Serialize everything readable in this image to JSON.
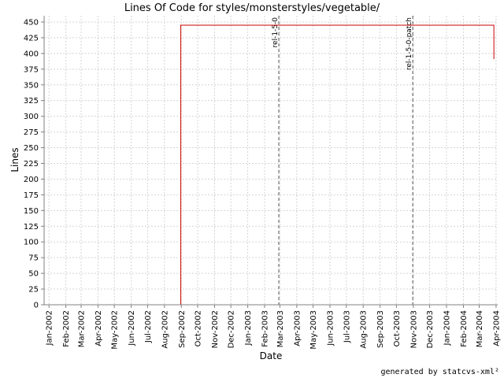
{
  "chart_data": {
    "type": "line",
    "title": "Lines Of Code for styles/monsterstyles/vegetable/",
    "xlabel": "Date",
    "ylabel": "Lines",
    "ylim": [
      0,
      460
    ],
    "xlim": [
      "2001-12-23",
      "2004-04-04"
    ],
    "y_ticks": [
      0,
      25,
      50,
      75,
      100,
      125,
      150,
      175,
      200,
      225,
      250,
      275,
      300,
      325,
      350,
      375,
      400,
      425,
      450
    ],
    "x_ticks": [
      {
        "label": "Jan-2002",
        "date": "2002-01-01"
      },
      {
        "label": "Feb-2002",
        "date": "2002-02-01"
      },
      {
        "label": "Mar-2002",
        "date": "2002-03-01"
      },
      {
        "label": "Apr-2002",
        "date": "2002-04-01"
      },
      {
        "label": "May-2002",
        "date": "2002-05-01"
      },
      {
        "label": "Jun-2002",
        "date": "2002-06-01"
      },
      {
        "label": "Jul-2002",
        "date": "2002-07-01"
      },
      {
        "label": "Aug-2002",
        "date": "2002-08-01"
      },
      {
        "label": "Sep-2002",
        "date": "2002-09-01"
      },
      {
        "label": "Oct-2002",
        "date": "2002-10-01"
      },
      {
        "label": "Nov-2002",
        "date": "2002-11-01"
      },
      {
        "label": "Dec-2002",
        "date": "2002-12-01"
      },
      {
        "label": "Jan-2003",
        "date": "2003-01-01"
      },
      {
        "label": "Feb-2003",
        "date": "2003-02-01"
      },
      {
        "label": "Mar-2003",
        "date": "2003-03-01"
      },
      {
        "label": "Apr-2003",
        "date": "2003-04-01"
      },
      {
        "label": "May-2003",
        "date": "2003-05-01"
      },
      {
        "label": "Jun-2003",
        "date": "2003-06-01"
      },
      {
        "label": "Jul-2003",
        "date": "2003-07-01"
      },
      {
        "label": "Aug-2003",
        "date": "2003-08-01"
      },
      {
        "label": "Sep-2003",
        "date": "2003-09-01"
      },
      {
        "label": "Oct-2003",
        "date": "2003-10-01"
      },
      {
        "label": "Nov-2003",
        "date": "2003-11-01"
      },
      {
        "label": "Dec-2003",
        "date": "2003-12-01"
      },
      {
        "label": "Jan-2004",
        "date": "2004-01-01"
      },
      {
        "label": "Feb-2004",
        "date": "2004-02-01"
      },
      {
        "label": "Mar-2004",
        "date": "2004-03-01"
      },
      {
        "label": "Apr-2004",
        "date": "2004-04-01"
      }
    ],
    "series": [
      {
        "color": "#cc0000",
        "step": true,
        "points": [
          {
            "x": "2001-12-29",
            "y": 0
          },
          {
            "x": "2002-08-31",
            "y": 0
          },
          {
            "x": "2002-08-31",
            "y": 445
          },
          {
            "x": "2004-03-28",
            "y": 445
          },
          {
            "x": "2004-03-28",
            "y": 391
          }
        ]
      }
    ],
    "markers": [
      {
        "label": "rel-1-5-0",
        "x": "2003-02-27"
      },
      {
        "label": "rel-1-5-0-patch",
        "x": "2003-10-31"
      }
    ],
    "grid": true,
    "legend": "none"
  },
  "footer": "generated by statcvs-xml²"
}
